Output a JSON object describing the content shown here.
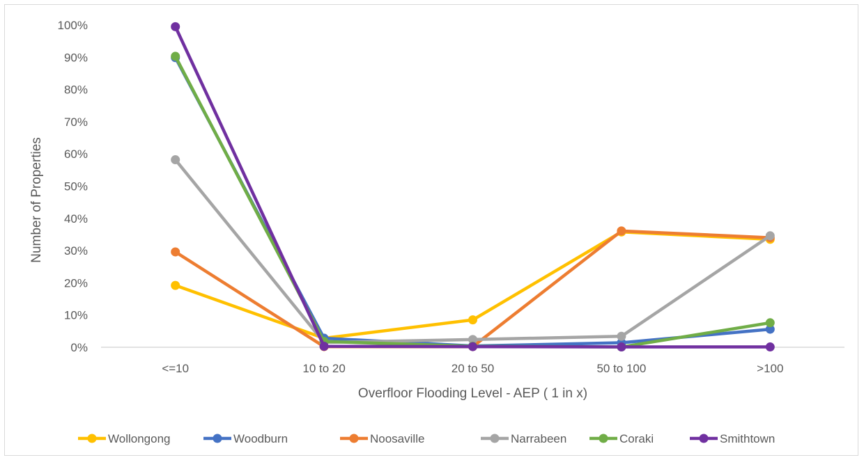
{
  "chart_data": {
    "type": "line",
    "title": "",
    "xlabel": "Overfloor Flooding Level - AEP ( 1 in x)",
    "ylabel": "Number of Properties",
    "categories": [
      "<=10",
      "10 to 20",
      "20 to 50",
      "50 to 100",
      ">100"
    ],
    "ylim": [
      0,
      100
    ],
    "yticks": [
      "0%",
      "10%",
      "20%",
      "30%",
      "40%",
      "50%",
      "60%",
      "70%",
      "80%",
      "90%",
      "100%"
    ],
    "grid": false,
    "legend_position": "bottom",
    "series": [
      {
        "name": "Wollongong",
        "color": "#FFC000",
        "values": [
          19.2,
          2.8,
          8.5,
          35.8,
          33.5
        ]
      },
      {
        "name": "Woodburn",
        "color": "#4472C4",
        "values": [
          89.9,
          2.8,
          0.4,
          1.4,
          5.6
        ]
      },
      {
        "name": "Noosaville",
        "color": "#ED7D31",
        "values": [
          29.6,
          0.2,
          0.2,
          36.1,
          34.0
        ]
      },
      {
        "name": "Narrabeen",
        "color": "#A5A5A5",
        "values": [
          58.2,
          1.5,
          2.4,
          3.4,
          34.6
        ]
      },
      {
        "name": "Coraki",
        "color": "#70AD47",
        "values": [
          90.3,
          1.8,
          0.3,
          0.1,
          7.6
        ]
      },
      {
        "name": "Smithtown",
        "color": "#7030A0",
        "values": [
          99.5,
          0.3,
          0.2,
          0.1,
          0.1
        ]
      }
    ]
  }
}
